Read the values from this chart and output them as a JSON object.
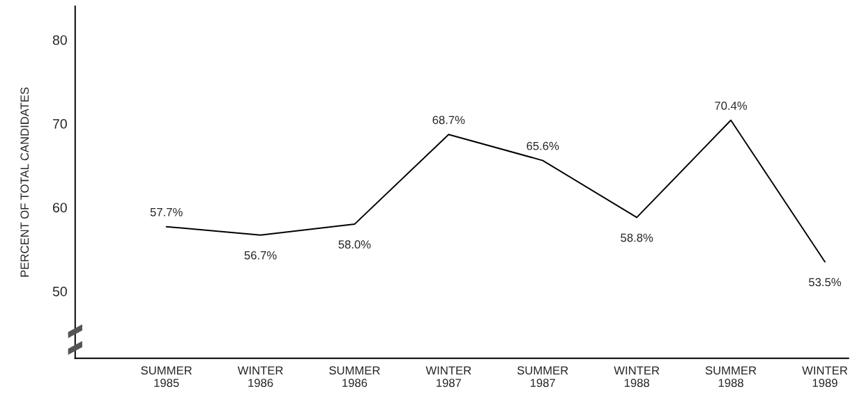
{
  "chart_data": {
    "type": "line",
    "ylabel": "PERCENT OF TOTAL CANDIDATES",
    "categories": [
      "SUMMER\n1985",
      "WINTER\n1986",
      "SUMMER\n1986",
      "WINTER\n1987",
      "SUMMER\n1987",
      "WINTER\n1988",
      "SUMMER\n1988",
      "WINTER\n1989"
    ],
    "series": [
      {
        "color": "#000000",
        "values": [
          57.7,
          56.7,
          58.0,
          68.7,
          65.6,
          58.8,
          70.4,
          53.5
        ],
        "value_labels": [
          "57.7%",
          "56.7%",
          "58.0%",
          "68.7%",
          "65.6%",
          "58.8%",
          "70.4%",
          "53.5%"
        ]
      }
    ],
    "ylim": [
      42,
      84
    ],
    "yticks": [
      50,
      60,
      70,
      80
    ],
    "grid": false,
    "legend": false,
    "marker": "none",
    "line_style": "solid"
  }
}
